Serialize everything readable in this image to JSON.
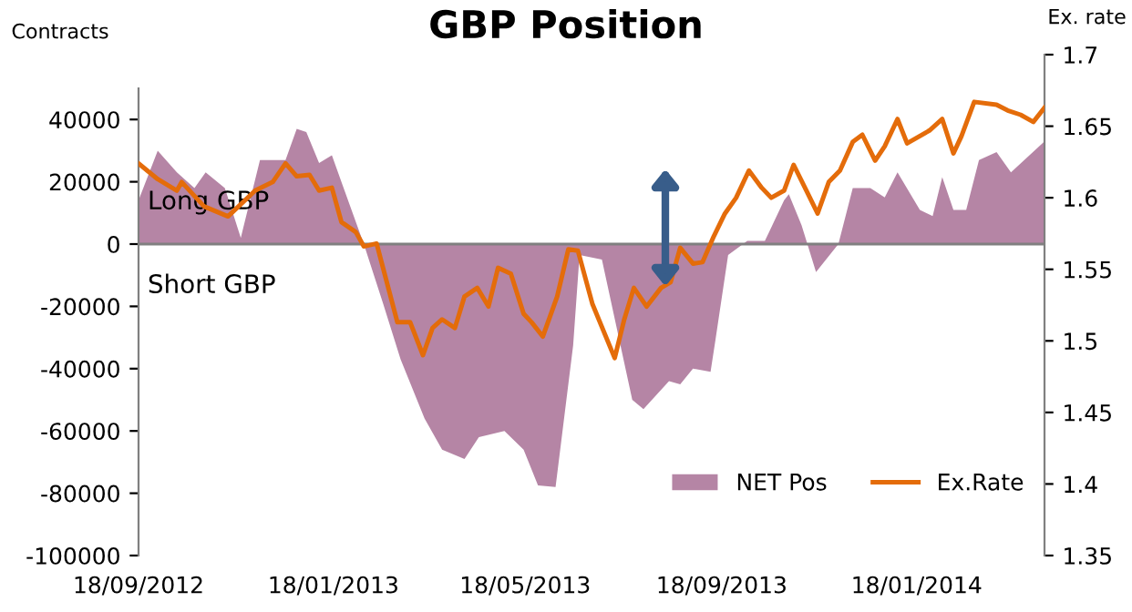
{
  "chart_data": {
    "type": "area",
    "title": "GBP Position",
    "ylabel": "Contracts",
    "y2label": "Ex. rate",
    "annotations": [
      "Long GBP",
      "Short GBP"
    ],
    "xlim": [
      "2012-09-18",
      "2014-04-08"
    ],
    "xticks": [
      {
        "value": "2012-09-18",
        "label": "18/09/2012"
      },
      {
        "value": "2013-01-18",
        "label": "18/01/2013"
      },
      {
        "value": "2013-05-18",
        "label": "18/05/2013"
      },
      {
        "value": "2013-09-18",
        "label": "18/09/2013"
      },
      {
        "value": "2014-01-18",
        "label": "18/01/2014"
      }
    ],
    "ylim": [
      -100000,
      50000
    ],
    "yticks": [
      -100000,
      -80000,
      -60000,
      -40000,
      -20000,
      0,
      20000,
      40000
    ],
    "y2lim": [
      1.35,
      1.7
    ],
    "y2ticks": [
      1.35,
      1.4,
      1.45,
      1.5,
      1.55,
      1.6,
      1.65,
      1.7
    ],
    "ref_lines": [
      {
        "axis": "y",
        "value": 0,
        "color": "#808080"
      }
    ],
    "legend": "bottom right",
    "grid": false,
    "series": [
      {
        "name": "NET Pos",
        "color": "#b585a5",
        "x": [
          "2012-09-18",
          "2012-09-30",
          "2012-10-12",
          "2012-10-23",
          "2012-10-30",
          "2012-11-11",
          "2012-11-21",
          "2012-12-03",
          "2012-12-19",
          "2012-12-26",
          "2013-01-01",
          "2013-01-09",
          "2013-01-17",
          "2013-01-24",
          "2013-02-06",
          "2013-02-18",
          "2013-03-01",
          "2013-03-16",
          "2013-03-27",
          "2013-04-10",
          "2013-04-19",
          "2013-05-05",
          "2013-05-17",
          "2013-05-26",
          "2013-06-06",
          "2013-06-17",
          "2013-06-21",
          "2013-07-05",
          "2013-07-24",
          "2013-07-31",
          "2013-08-16",
          "2013-08-23",
          "2013-08-31",
          "2013-09-11",
          "2013-09-14",
          "2013-09-22",
          "2013-10-04",
          "2013-10-15",
          "2013-10-27",
          "2013-10-30",
          "2013-11-07",
          "2013-11-16",
          "2013-11-30",
          "2013-12-09",
          "2013-12-20",
          "2013-12-29",
          "2014-01-06",
          "2014-01-20",
          "2014-01-28",
          "2014-02-03",
          "2014-02-10",
          "2014-02-18",
          "2014-02-26",
          "2014-03-09",
          "2014-03-18",
          "2014-04-08"
        ],
        "values": [
          14000,
          30000,
          23000,
          18000,
          23000,
          18000,
          2000,
          27000,
          27000,
          37000,
          36000,
          26000,
          28500,
          18500,
          0,
          -19000,
          -37000,
          -56000,
          -66000,
          -69000,
          -62000,
          -60000,
          -66000,
          -77500,
          -78000,
          -32500,
          -3500,
          -5000,
          -50000,
          -53000,
          -44000,
          -45000,
          -40000,
          -41000,
          -31000,
          -3500,
          1000,
          1000,
          14000,
          16000,
          6000,
          -9000,
          0,
          18000,
          18000,
          15000,
          23000,
          11000,
          9000,
          21500,
          11000,
          11000,
          27000,
          29500,
          23000,
          33000
        ]
      },
      {
        "name": "Ex.Rate",
        "type": "line",
        "axis": "y2",
        "color": "#e46c0a",
        "x": [
          "2012-09-18",
          "2012-09-30",
          "2012-10-12",
          "2012-10-15",
          "2012-10-29",
          "2012-11-13",
          "2012-11-30",
          "2012-12-11",
          "2012-12-19",
          "2012-12-26",
          "2013-01-03",
          "2013-01-09",
          "2013-01-17",
          "2013-01-23",
          "2013-02-01",
          "2013-02-06",
          "2013-02-14",
          "2013-02-27",
          "2013-03-07",
          "2013-03-15",
          "2013-03-21",
          "2013-03-27",
          "2013-04-04",
          "2013-04-10",
          "2013-04-18",
          "2013-04-25",
          "2013-05-01",
          "2013-05-09",
          "2013-05-17",
          "2013-05-22",
          "2013-05-29",
          "2013-06-07",
          "2013-06-14",
          "2013-06-20",
          "2013-06-29",
          "2013-07-13",
          "2013-07-19",
          "2013-07-25",
          "2013-08-02",
          "2013-08-11",
          "2013-08-17",
          "2013-08-23",
          "2013-08-31",
          "2013-09-06",
          "2013-09-13",
          "2013-09-20",
          "2013-09-27",
          "2013-10-05",
          "2013-10-13",
          "2013-10-19",
          "2013-10-27",
          "2013-11-02",
          "2013-11-10",
          "2013-11-17",
          "2013-11-24",
          "2013-12-01",
          "2013-12-09",
          "2013-12-15",
          "2013-12-23",
          "2013-12-29",
          "2014-01-06",
          "2014-01-12",
          "2014-01-26",
          "2014-02-03",
          "2014-02-10",
          "2014-02-15",
          "2014-02-23",
          "2014-03-09",
          "2014-03-16",
          "2014-03-24",
          "2014-04-01",
          "2014-04-08"
        ],
        "values": [
          1.624,
          1.613,
          1.605,
          1.611,
          1.594,
          1.587,
          1.605,
          1.611,
          1.624,
          1.615,
          1.616,
          1.605,
          1.607,
          1.583,
          1.576,
          1.566,
          1.568,
          1.513,
          1.513,
          1.49,
          1.509,
          1.515,
          1.509,
          1.531,
          1.537,
          1.524,
          1.551,
          1.547,
          1.519,
          1.513,
          1.503,
          1.531,
          1.564,
          1.563,
          1.526,
          1.488,
          1.515,
          1.537,
          1.524,
          1.537,
          1.541,
          1.565,
          1.554,
          1.555,
          1.573,
          1.589,
          1.6,
          1.619,
          1.607,
          1.6,
          1.605,
          1.623,
          1.605,
          1.589,
          1.611,
          1.619,
          1.639,
          1.644,
          1.626,
          1.636,
          1.655,
          1.638,
          1.647,
          1.655,
          1.631,
          1.643,
          1.667,
          1.665,
          1.661,
          1.658,
          1.653,
          1.663
        ]
      }
    ]
  }
}
